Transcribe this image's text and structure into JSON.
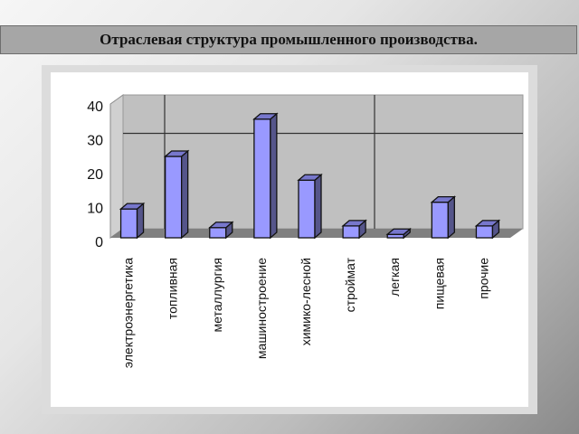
{
  "slide": {
    "title": "Отраслевая структура промышленного производства."
  },
  "colors": {
    "bar_front": "#9999ff",
    "bar_side": "#55558a",
    "bar_top": "#7777cc",
    "wall": "#c0c0c0",
    "floor": "#808080"
  },
  "chart_data": {
    "type": "bar",
    "title": "Отраслевая структура промышленного производства.",
    "xlabel": "",
    "ylabel": "",
    "ylim": [
      0,
      40
    ],
    "yticks": [
      "0",
      "10",
      "20",
      "30",
      "40"
    ],
    "grid": true,
    "legend": false,
    "style": "3d-column",
    "categories": [
      "электроэнергетика",
      "топливная",
      "металлургия",
      "машиностроение",
      "химико-лесной",
      "строймат",
      "легкая",
      "пищевая",
      "прочие"
    ],
    "values": [
      8.5,
      24,
      3,
      35,
      17,
      3.5,
      1,
      10.5,
      3.5
    ]
  }
}
